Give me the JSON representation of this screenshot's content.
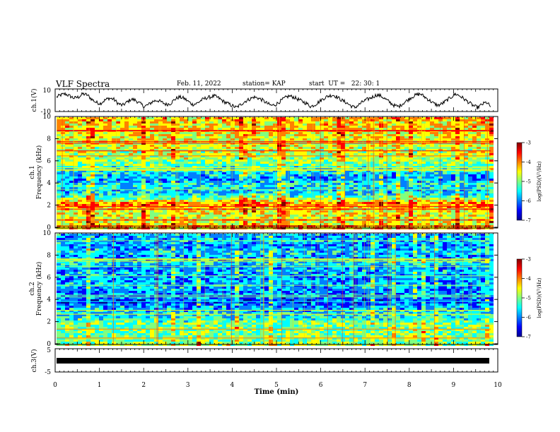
{
  "header": {
    "title": "VLF Spectra",
    "date": "Feb. 11, 2022",
    "station": "station= KAP",
    "start_time": "start  UT =   22: 30: 1"
  },
  "colors": {
    "colormap": [
      "#00008f",
      "#0000ff",
      "#0080ff",
      "#00ffff",
      "#80ff80",
      "#ffff00",
      "#ff8000",
      "#ff0000",
      "#800000"
    ]
  },
  "chart_data": [
    {
      "id": "ch1-waveform",
      "type": "line",
      "ylabel": "ch.1(V)",
      "ylim": [
        -10,
        10
      ],
      "yticks": [
        "10",
        "-10"
      ],
      "xlim": [
        0,
        10
      ],
      "series": [
        {
          "values": [
            3,
            5,
            6,
            4,
            2,
            3,
            6,
            5,
            1,
            -2,
            -3,
            0,
            2,
            1,
            -3,
            -5,
            -2,
            1,
            0,
            -3,
            -6,
            -4,
            -1,
            0,
            -2,
            -4,
            -3,
            1,
            3,
            2,
            -1,
            -4,
            -3,
            0,
            2,
            3,
            4,
            2,
            -1,
            -3,
            -5,
            -7,
            -4,
            -1,
            1,
            3,
            2,
            0,
            -3,
            -5,
            -4,
            -1,
            2,
            4,
            3,
            1,
            -1,
            -3,
            -6,
            -4,
            -1,
            2,
            4,
            5,
            3,
            0,
            -2,
            -5,
            -7,
            -4,
            -1,
            1,
            3,
            5,
            4,
            1,
            -2,
            -5,
            -6,
            -3,
            0,
            3,
            5,
            6,
            3,
            0,
            -3,
            -5,
            -3,
            0,
            3,
            6,
            4,
            1,
            -2,
            -5,
            -7,
            -4,
            -2,
            -6
          ]
        }
      ]
    },
    {
      "id": "ch1-spectrogram",
      "type": "heatmap",
      "ylabel": "ch.1\nFrequency  (kHz)",
      "ylim": [
        0,
        10
      ],
      "yticks": [
        "0",
        "2",
        "4",
        "6",
        "8",
        "10"
      ],
      "xlim": [
        0,
        10
      ],
      "colorbar": {
        "label": "log(PSD)(V²/Hz)",
        "range": [
          -7,
          -3
        ],
        "ticks": [
          "-3",
          "-4",
          "-5",
          "-6",
          "-7"
        ]
      },
      "band_profile": [
        [
          0,
          0.62
        ],
        [
          0.3,
          0.72
        ],
        [
          0.5,
          0.6
        ],
        [
          1.0,
          0.58
        ],
        [
          1.5,
          0.6
        ],
        [
          2.0,
          0.66
        ],
        [
          2.3,
          0.74
        ],
        [
          2.6,
          0.6
        ],
        [
          3.0,
          0.45
        ],
        [
          3.5,
          0.32
        ],
        [
          4.0,
          0.4
        ],
        [
          4.5,
          0.3
        ],
        [
          5.0,
          0.35
        ],
        [
          5.5,
          0.42
        ],
        [
          6.0,
          0.5
        ],
        [
          6.5,
          0.54
        ],
        [
          7.0,
          0.56
        ],
        [
          8.0,
          0.6
        ],
        [
          9.0,
          0.64
        ],
        [
          10,
          0.66
        ]
      ]
    },
    {
      "id": "ch2-spectrogram",
      "type": "heatmap",
      "ylabel": "ch.2\nFrequency  (kHz)",
      "ylim": [
        0,
        10
      ],
      "yticks": [
        "0",
        "2",
        "4",
        "6",
        "8",
        "10"
      ],
      "xlim": [
        0,
        10
      ],
      "colorbar": {
        "label": "log(PSD)(V²/Hz)",
        "range": [
          -7,
          -3
        ],
        "ticks": [
          "-3",
          "-4",
          "-5",
          "-6",
          "-7"
        ]
      },
      "band_profile": [
        [
          0,
          0.55
        ],
        [
          0.5,
          0.5
        ],
        [
          1.0,
          0.5
        ],
        [
          1.5,
          0.48
        ],
        [
          2.0,
          0.5
        ],
        [
          2.5,
          0.42
        ],
        [
          3.0,
          0.36
        ],
        [
          3.5,
          0.32
        ],
        [
          4.0,
          0.2
        ],
        [
          4.5,
          0.28
        ],
        [
          5.0,
          0.3
        ],
        [
          5.5,
          0.34
        ],
        [
          6.0,
          0.28
        ],
        [
          6.5,
          0.34
        ],
        [
          7.0,
          0.3
        ],
        [
          7.5,
          0.38
        ],
        [
          8.0,
          0.3
        ],
        [
          8.5,
          0.36
        ],
        [
          9.0,
          0.28
        ],
        [
          9.5,
          0.34
        ],
        [
          10,
          0.32
        ]
      ]
    },
    {
      "id": "ch3-waveform",
      "type": "line",
      "ylabel": "ch.3(V)",
      "ylim": [
        -5,
        5
      ],
      "yticks": [
        "5",
        "-5"
      ],
      "xlim": [
        0,
        10
      ],
      "series": [
        {
          "values": [
            0,
            0
          ]
        }
      ]
    }
  ],
  "x_axis": {
    "label": "Time  (min)",
    "ticks": [
      "0",
      "1",
      "2",
      "3",
      "4",
      "5",
      "6",
      "7",
      "8",
      "9",
      "10"
    ]
  }
}
